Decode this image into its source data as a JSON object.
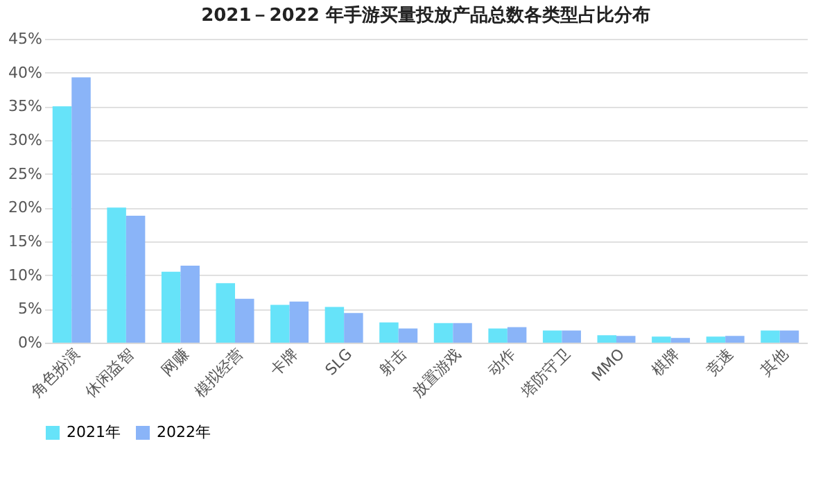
{
  "chart_data": {
    "type": "bar",
    "title": "2021－2022 年手游买量投放产品总数各类型占比分布",
    "categories": [
      "角色扮演",
      "休闲益智",
      "网赚",
      "模拟经营",
      "卡牌",
      "SLG",
      "射击",
      "放置游戏",
      "动作",
      "塔防守卫",
      "MMO",
      "棋牌",
      "竞速",
      "其他"
    ],
    "series": [
      {
        "name": "2021年",
        "color": "#66e3f9",
        "values": [
          35.0,
          20.0,
          10.5,
          8.8,
          5.6,
          5.3,
          3.0,
          2.9,
          2.1,
          1.8,
          1.1,
          0.9,
          0.9,
          1.8
        ]
      },
      {
        "name": "2022年",
        "color": "#8ab4f8",
        "values": [
          39.3,
          18.8,
          11.4,
          6.5,
          6.1,
          4.4,
          2.1,
          2.9,
          2.3,
          1.8,
          1.0,
          0.7,
          1.0,
          1.8
        ]
      }
    ],
    "ylim": [
      0,
      45
    ],
    "yticks": [
      {
        "value": 0,
        "label": "0%"
      },
      {
        "value": 5,
        "label": "5%"
      },
      {
        "value": 10,
        "label": "10%"
      },
      {
        "value": 15,
        "label": "15%"
      },
      {
        "value": 20,
        "label": "20%"
      },
      {
        "value": 25,
        "label": "25%"
      },
      {
        "value": 30,
        "label": "30%"
      },
      {
        "value": 35,
        "label": "35%"
      },
      {
        "value": 40,
        "label": "40%"
      },
      {
        "value": 45,
        "label": "45%"
      }
    ],
    "grid": "y",
    "legend": "bottom"
  }
}
